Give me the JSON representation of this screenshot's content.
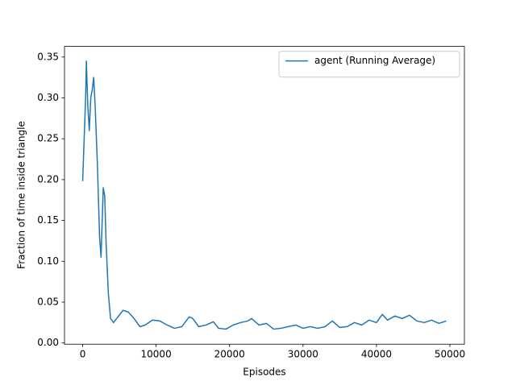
{
  "chart_data": {
    "type": "line",
    "xlabel": "Episodes",
    "ylabel": "Fraction of time inside triangle",
    "x": [
      0,
      200,
      400,
      500,
      700,
      900,
      1100,
      1300,
      1500,
      1700,
      2000,
      2300,
      2500,
      2800,
      3000,
      3200,
      3500,
      3800,
      4200,
      4800,
      5500,
      6200,
      7000,
      7800,
      8500,
      9500,
      10500,
      11500,
      12500,
      13500,
      14500,
      15000,
      15800,
      16800,
      17800,
      18500,
      19500,
      20500,
      21500,
      22500,
      23000,
      24000,
      25000,
      26000,
      27000,
      28000,
      29000,
      30000,
      31000,
      32000,
      33000,
      34000,
      35000,
      36000,
      37000,
      38000,
      39000,
      40000,
      40800,
      41500,
      42500,
      43500,
      44500,
      45500,
      46500,
      47500,
      48500,
      49500
    ],
    "series": [
      {
        "name": "agent (Running Average)",
        "color": "#1f77b4",
        "values": [
          0.198,
          0.25,
          0.3,
          0.345,
          0.29,
          0.26,
          0.3,
          0.31,
          0.325,
          0.29,
          0.22,
          0.13,
          0.105,
          0.19,
          0.18,
          0.12,
          0.06,
          0.03,
          0.025,
          0.032,
          0.04,
          0.038,
          0.03,
          0.02,
          0.022,
          0.028,
          0.027,
          0.022,
          0.018,
          0.02,
          0.032,
          0.03,
          0.02,
          0.022,
          0.026,
          0.018,
          0.017,
          0.022,
          0.025,
          0.027,
          0.03,
          0.022,
          0.024,
          0.017,
          0.018,
          0.02,
          0.022,
          0.018,
          0.02,
          0.018,
          0.02,
          0.027,
          0.019,
          0.02,
          0.025,
          0.022,
          0.028,
          0.025,
          0.035,
          0.028,
          0.033,
          0.03,
          0.034,
          0.027,
          0.025,
          0.028,
          0.024,
          0.027
        ]
      }
    ],
    "xlim": [
      -2475,
      51975
    ],
    "ylim": [
      -0.0015,
      0.363
    ],
    "xticks": [
      0,
      10000,
      20000,
      30000,
      40000,
      50000
    ],
    "yticks": [
      {
        "value": 0,
        "label": "0.00"
      },
      {
        "value": 0.05,
        "label": "0.05"
      },
      {
        "value": 0.1,
        "label": "0.10"
      },
      {
        "value": 0.15,
        "label": "0.15"
      },
      {
        "value": 0.2,
        "label": "0.20"
      },
      {
        "value": 0.25,
        "label": "0.25"
      },
      {
        "value": 0.3,
        "label": "0.30"
      },
      {
        "value": 0.35,
        "label": "0.35"
      }
    ],
    "legend": "upper right"
  }
}
